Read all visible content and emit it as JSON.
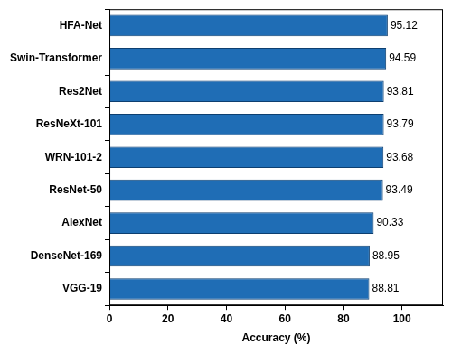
{
  "chart_data": {
    "type": "bar",
    "orientation": "horizontal",
    "x_label": "Accuracy (%)",
    "categories": [
      "HFA-Net",
      "Swin-Transformer",
      "Res2Net",
      "ResNeXt-101",
      "WRN-101-2",
      "ResNet-50",
      "AlexNet",
      "DenseNet-169",
      "VGG-19"
    ],
    "values": [
      95.12,
      94.59,
      93.81,
      93.79,
      93.68,
      93.49,
      90.33,
      88.95,
      88.81
    ],
    "color": "#1f6db5",
    "xlim": [
      0,
      114
    ],
    "xticks": [
      0,
      20,
      40,
      60,
      80,
      100
    ],
    "grid": false,
    "data_labels": true
  }
}
